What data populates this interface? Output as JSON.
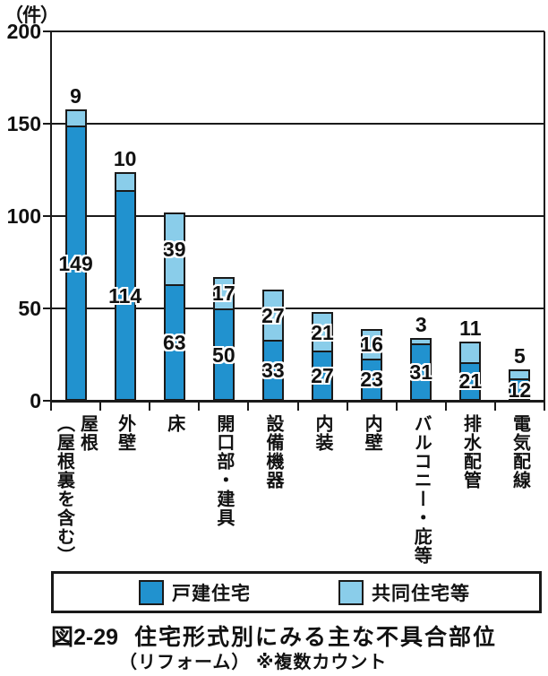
{
  "figure": {
    "unit": "（件）",
    "caption": {
      "label": "図2-29",
      "title": "住宅形式別にみる主な不具合部位",
      "subtitle": "（リフォーム） ※複数カウント"
    }
  },
  "chart_data": {
    "type": "bar",
    "stacked": true,
    "title": "図2-29 住宅形式別にみる主な不具合部位（リフォーム）※複数カウント",
    "ylabel": "（件）",
    "ylim": [
      0,
      200
    ],
    "yticks": [
      0,
      50,
      100,
      150,
      200
    ],
    "grid": true,
    "legend_position": "bottom",
    "categories": [
      {
        "name": "屋根（屋根裏を含む）",
        "lines": [
          "屋根",
          "（屋根裏を含む）"
        ]
      },
      {
        "name": "外壁",
        "lines": [
          "外壁"
        ]
      },
      {
        "name": "床",
        "lines": [
          "床"
        ]
      },
      {
        "name": "開口部・建具",
        "lines": [
          "開口部・建具"
        ]
      },
      {
        "name": "設備機器",
        "lines": [
          "設備機器"
        ]
      },
      {
        "name": "内装",
        "lines": [
          "内装"
        ]
      },
      {
        "name": "内壁",
        "lines": [
          "内壁"
        ]
      },
      {
        "name": "バルコニー・庇等",
        "lines": [
          "バルコニー・庇等"
        ]
      },
      {
        "name": "排水配管",
        "lines": [
          "排水配管"
        ]
      },
      {
        "name": "電気配線",
        "lines": [
          "電気配線"
        ]
      }
    ],
    "series": [
      {
        "name": "戸建住宅",
        "color": "#2192cf",
        "values": [
          149,
          114,
          63,
          50,
          33,
          27,
          23,
          31,
          21,
          12
        ]
      },
      {
        "name": "共同住宅等",
        "color": "#8acdea",
        "values": [
          9,
          10,
          39,
          17,
          27,
          21,
          16,
          3,
          11,
          5
        ]
      }
    ],
    "totals": [
      158,
      124,
      102,
      67,
      60,
      48,
      39,
      34,
      32,
      17
    ],
    "line_color": "#1a1a1a"
  }
}
